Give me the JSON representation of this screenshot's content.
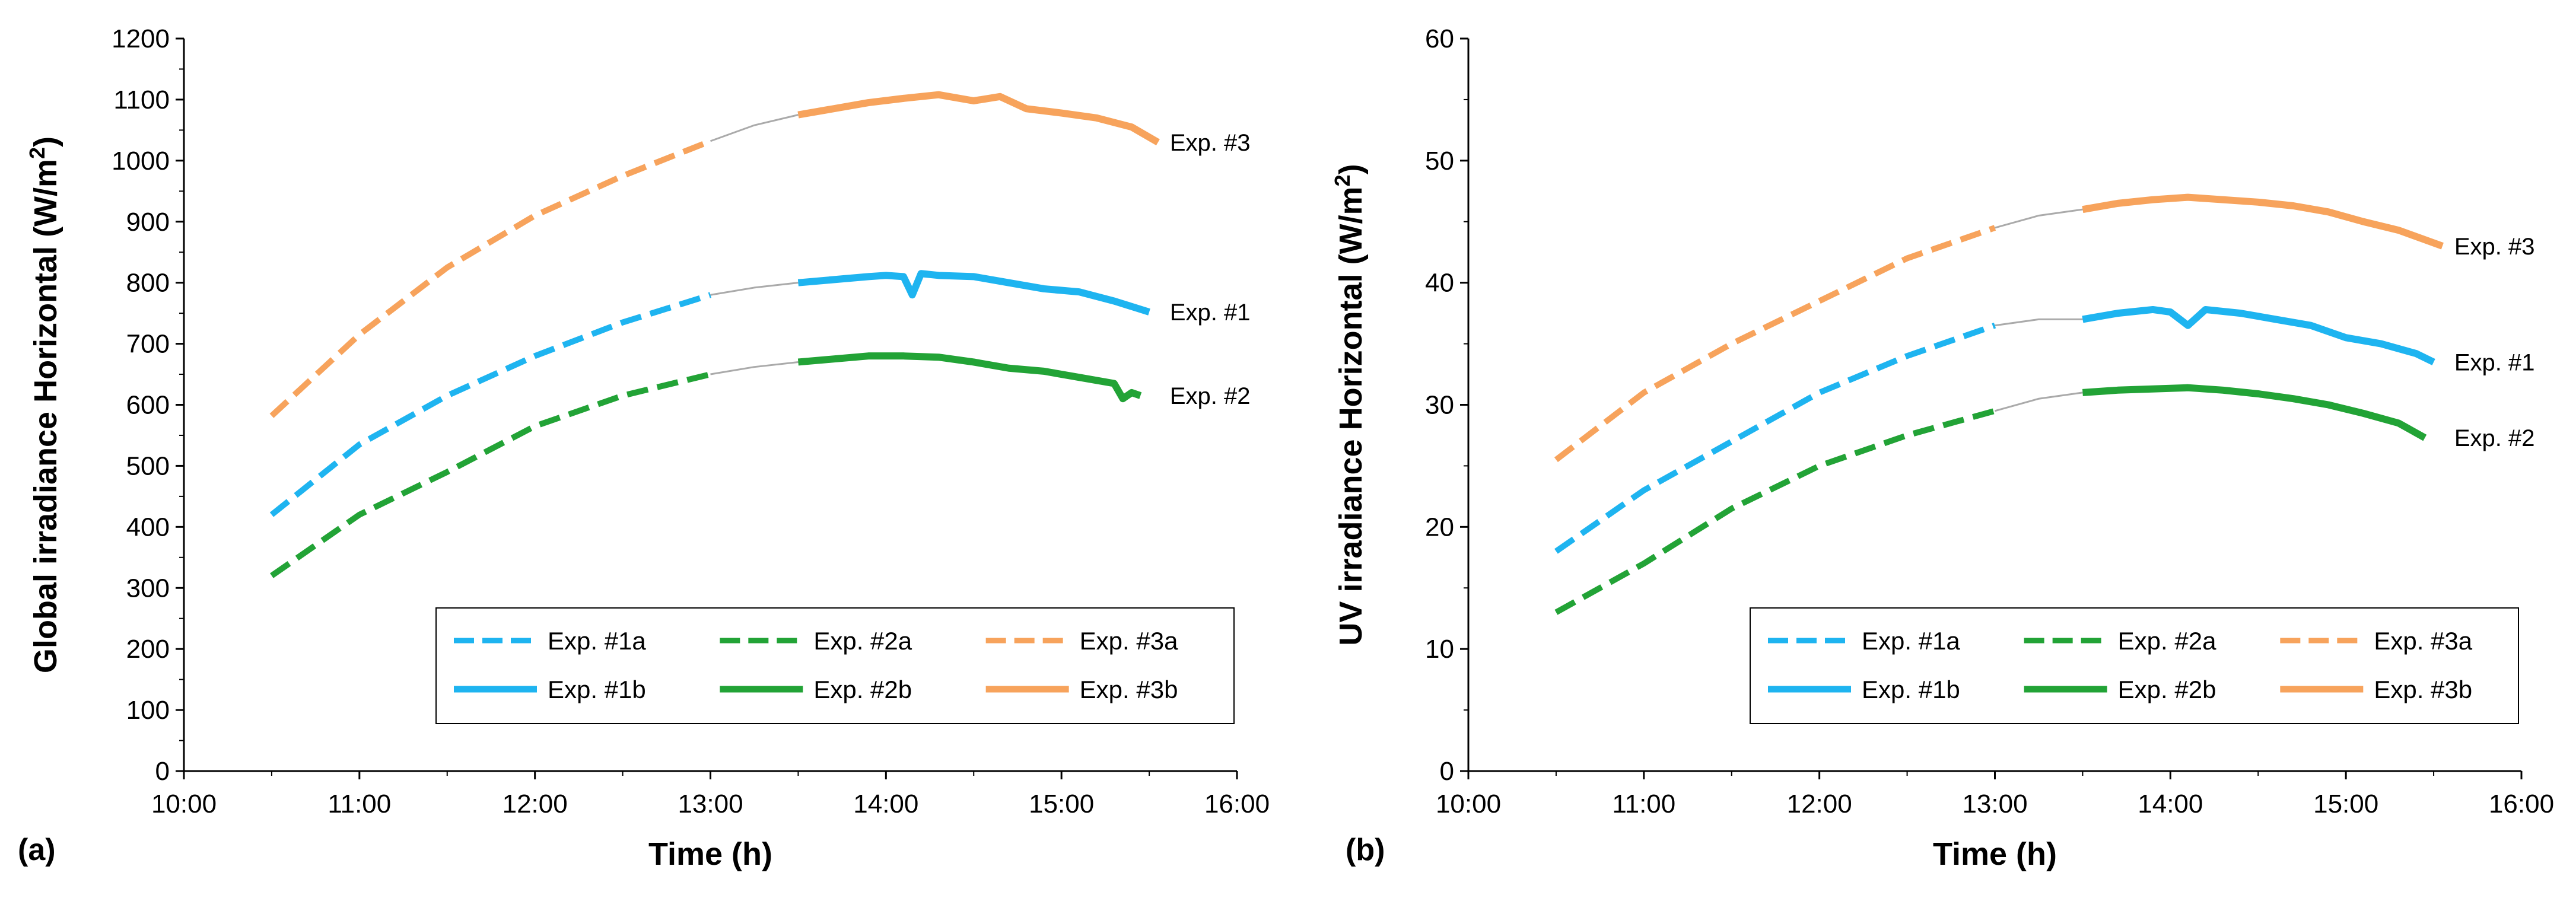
{
  "colors": {
    "exp1": "#1EB4F0",
    "exp2": "#22A336",
    "exp3": "#F7A35C",
    "connector": "#AAAAAA",
    "axis": "#000000"
  },
  "chart_data": [
    {
      "type": "line",
      "panel_label": "(a)",
      "xlabel": "Time (h)",
      "ylabel_main": "Global irradiance Horizontal (W/m",
      "ylabel_sup": "2",
      "ylabel_end": ")",
      "xlim": [
        10,
        16
      ],
      "xticks": [
        10,
        11,
        12,
        13,
        14,
        15,
        16
      ],
      "xtick_labels": [
        "10:00",
        "11:00",
        "12:00",
        "13:00",
        "14:00",
        "15:00",
        "16:00"
      ],
      "ylim": [
        0,
        1200
      ],
      "yticks": [
        0,
        100,
        200,
        300,
        400,
        500,
        600,
        700,
        800,
        900,
        1000,
        1100,
        1200
      ],
      "series": [
        {
          "name": "Exp. #1a",
          "group": "exp1",
          "style": "dashed",
          "x": [
            10.5,
            11.0,
            11.5,
            12.0,
            12.5,
            13.0
          ],
          "y": [
            420,
            535,
            615,
            680,
            735,
            780
          ]
        },
        {
          "name": "Exp. #1b",
          "group": "exp1",
          "style": "solid",
          "x": [
            13.5,
            13.7,
            13.9,
            14.0,
            14.1,
            14.15,
            14.2,
            14.3,
            14.5,
            14.7,
            14.9,
            15.1,
            15.3,
            15.5
          ],
          "y": [
            800,
            805,
            810,
            812,
            810,
            780,
            815,
            812,
            810,
            800,
            790,
            785,
            770,
            752
          ]
        },
        {
          "name": "Exp. #2a",
          "group": "exp2",
          "style": "dashed",
          "x": [
            10.5,
            11.0,
            11.5,
            12.0,
            12.5,
            13.0
          ],
          "y": [
            320,
            420,
            490,
            565,
            615,
            650
          ]
        },
        {
          "name": "Exp. #2b",
          "group": "exp2",
          "style": "solid",
          "x": [
            13.5,
            13.7,
            13.9,
            14.1,
            14.3,
            14.5,
            14.7,
            14.9,
            15.1,
            15.3,
            15.35,
            15.4,
            15.45
          ],
          "y": [
            670,
            675,
            680,
            680,
            678,
            670,
            660,
            655,
            645,
            635,
            610,
            620,
            615
          ]
        },
        {
          "name": "Exp. #3a",
          "group": "exp3",
          "style": "dashed",
          "x": [
            10.5,
            11.0,
            11.5,
            12.0,
            12.5,
            13.0
          ],
          "y": [
            582,
            715,
            825,
            910,
            975,
            1032
          ]
        },
        {
          "name": "Exp. #3b",
          "group": "exp3",
          "style": "solid",
          "x": [
            13.5,
            13.7,
            13.9,
            14.1,
            14.3,
            14.5,
            14.65,
            14.8,
            15.0,
            15.2,
            15.4,
            15.55
          ],
          "y": [
            1075,
            1085,
            1095,
            1102,
            1108,
            1098,
            1105,
            1085,
            1078,
            1070,
            1055,
            1030
          ]
        }
      ],
      "connectors": [
        {
          "group": "exp1",
          "x": [
            13.0,
            13.25,
            13.5
          ],
          "y": [
            780,
            792,
            800
          ]
        },
        {
          "group": "exp2",
          "x": [
            13.0,
            13.25,
            13.5
          ],
          "y": [
            650,
            662,
            670
          ]
        },
        {
          "group": "exp3",
          "x": [
            13.0,
            13.25,
            13.5
          ],
          "y": [
            1032,
            1058,
            1075
          ]
        }
      ],
      "end_labels": [
        {
          "text": "Exp. #3",
          "x": 15.55,
          "y": 1030
        },
        {
          "text": "Exp. #1",
          "x": 15.55,
          "y": 752
        },
        {
          "text": "Exp. #2",
          "x": 15.55,
          "y": 615
        }
      ],
      "legend_position": "bottom-right"
    },
    {
      "type": "line",
      "panel_label": "(b)",
      "xlabel": "Time (h)",
      "ylabel_main": "UV irradiance Horizontal (W/m",
      "ylabel_sup": "2",
      "ylabel_end": ")",
      "xlim": [
        10,
        16
      ],
      "xticks": [
        10,
        11,
        12,
        13,
        14,
        15,
        16
      ],
      "xtick_labels": [
        "10:00",
        "11:00",
        "12:00",
        "13:00",
        "14:00",
        "15:00",
        "16:00"
      ],
      "ylim": [
        0,
        60
      ],
      "yticks": [
        0,
        10,
        20,
        30,
        40,
        50,
        60
      ],
      "series": [
        {
          "name": "Exp. #1a",
          "group": "exp1",
          "style": "dashed",
          "x": [
            10.5,
            11.0,
            11.5,
            12.0,
            12.5,
            13.0
          ],
          "y": [
            18,
            23,
            27,
            31,
            34,
            36.5
          ]
        },
        {
          "name": "Exp. #1b",
          "group": "exp1",
          "style": "solid",
          "x": [
            13.5,
            13.7,
            13.9,
            14.0,
            14.1,
            14.2,
            14.4,
            14.6,
            14.8,
            15.0,
            15.2,
            15.4,
            15.5
          ],
          "y": [
            37,
            37.5,
            37.8,
            37.6,
            36.5,
            37.8,
            37.5,
            37,
            36.5,
            35.5,
            35,
            34.2,
            33.5
          ]
        },
        {
          "name": "Exp. #2a",
          "group": "exp2",
          "style": "dashed",
          "x": [
            10.5,
            11.0,
            11.5,
            12.0,
            12.5,
            13.0
          ],
          "y": [
            13,
            17,
            21.5,
            25,
            27.5,
            29.5
          ]
        },
        {
          "name": "Exp. #2b",
          "group": "exp2",
          "style": "solid",
          "x": [
            13.5,
            13.7,
            13.9,
            14.1,
            14.3,
            14.5,
            14.7,
            14.9,
            15.1,
            15.3,
            15.45
          ],
          "y": [
            31,
            31.2,
            31.3,
            31.4,
            31.2,
            30.9,
            30.5,
            30,
            29.3,
            28.5,
            27.3
          ]
        },
        {
          "name": "Exp. #3a",
          "group": "exp3",
          "style": "dashed",
          "x": [
            10.5,
            11.0,
            11.5,
            12.0,
            12.5,
            13.0
          ],
          "y": [
            25.5,
            31,
            35,
            38.5,
            42,
            44.5
          ]
        },
        {
          "name": "Exp. #3b",
          "group": "exp3",
          "style": "solid",
          "x": [
            13.5,
            13.7,
            13.9,
            14.1,
            14.3,
            14.5,
            14.7,
            14.9,
            15.1,
            15.3,
            15.55
          ],
          "y": [
            46,
            46.5,
            46.8,
            47,
            46.8,
            46.6,
            46.3,
            45.8,
            45,
            44.3,
            43
          ]
        }
      ],
      "connectors": [
        {
          "group": "exp1",
          "x": [
            13.0,
            13.25,
            13.5
          ],
          "y": [
            36.5,
            37,
            37
          ]
        },
        {
          "group": "exp2",
          "x": [
            13.0,
            13.25,
            13.5
          ],
          "y": [
            29.5,
            30.5,
            31
          ]
        },
        {
          "group": "exp3",
          "x": [
            13.0,
            13.25,
            13.5
          ],
          "y": [
            44.5,
            45.5,
            46
          ]
        }
      ],
      "end_labels": [
        {
          "text": "Exp. #3",
          "x": 15.55,
          "y": 43
        },
        {
          "text": "Exp. #1",
          "x": 15.55,
          "y": 33.5
        },
        {
          "text": "Exp. #2",
          "x": 15.55,
          "y": 27.3
        }
      ],
      "legend_position": "bottom-right"
    }
  ]
}
